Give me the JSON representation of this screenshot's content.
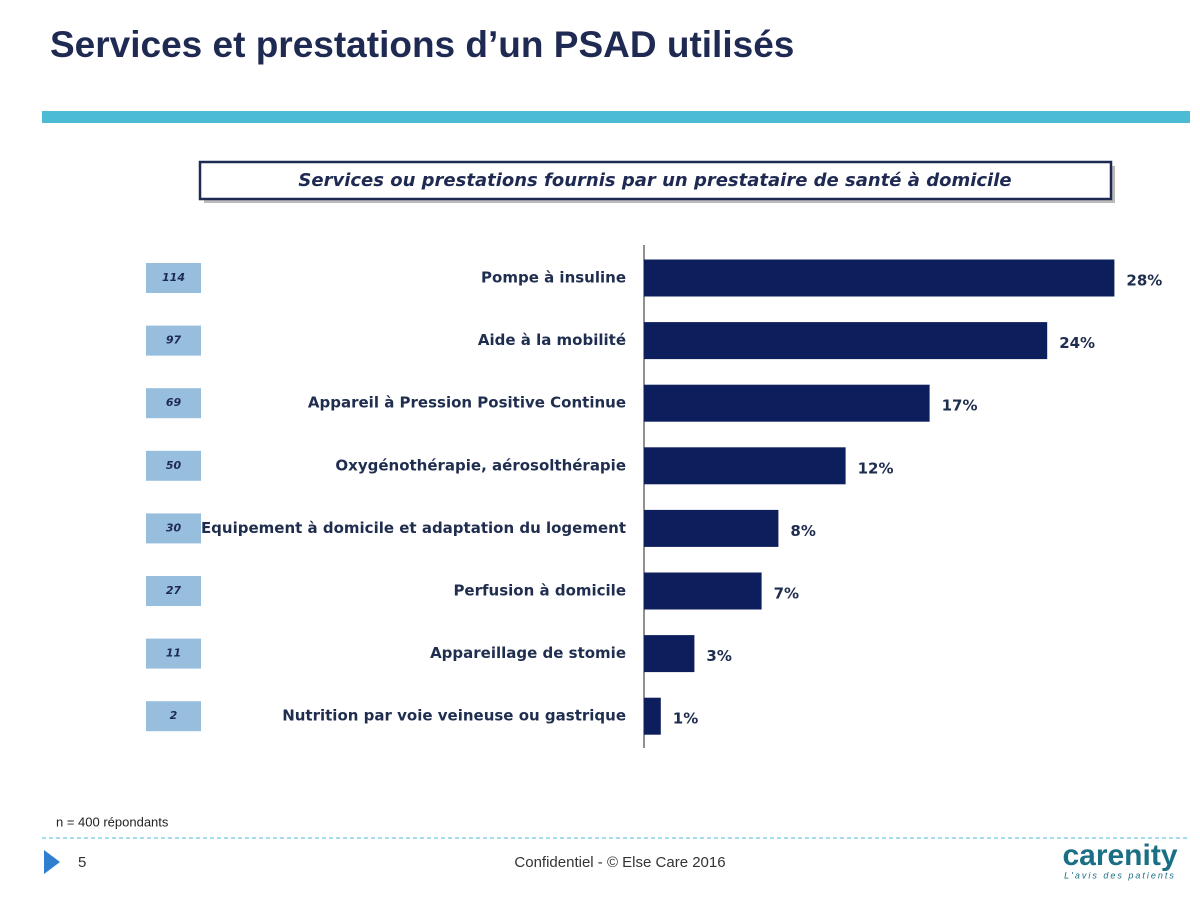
{
  "slide_title": "Services et prestations d’un PSAD utilisés",
  "chart_data": {
    "type": "bar",
    "orientation": "horizontal",
    "title": "Services ou prestations fournis par un prestataire de santé à domicile",
    "categories": [
      "Pompe à insuline",
      "Aide à la mobilité",
      "Appareil à Pression Positive Continue",
      "Oxygénothérapie, aérosolthérapie",
      "Equipement à domicile et adaptation du logement",
      "Perfusion à domicile",
      "Appareillage de stomie",
      "Nutrition par voie veineuse ou gastrique"
    ],
    "values": [
      28,
      24,
      17,
      12,
      8,
      7,
      3,
      1
    ],
    "value_labels": [
      "28%",
      "24%",
      "17%",
      "12%",
      "8%",
      "7%",
      "3%",
      "1%"
    ],
    "counts": [
      114,
      97,
      69,
      50,
      30,
      27,
      11,
      2
    ],
    "color": "#0c1f5c"
  },
  "note": "n = 400 répondants",
  "footer": {
    "page": "5",
    "text": "Confidentiel - © Else Care 2016",
    "logo": "carenity",
    "tagline": "L'avis des patients"
  }
}
